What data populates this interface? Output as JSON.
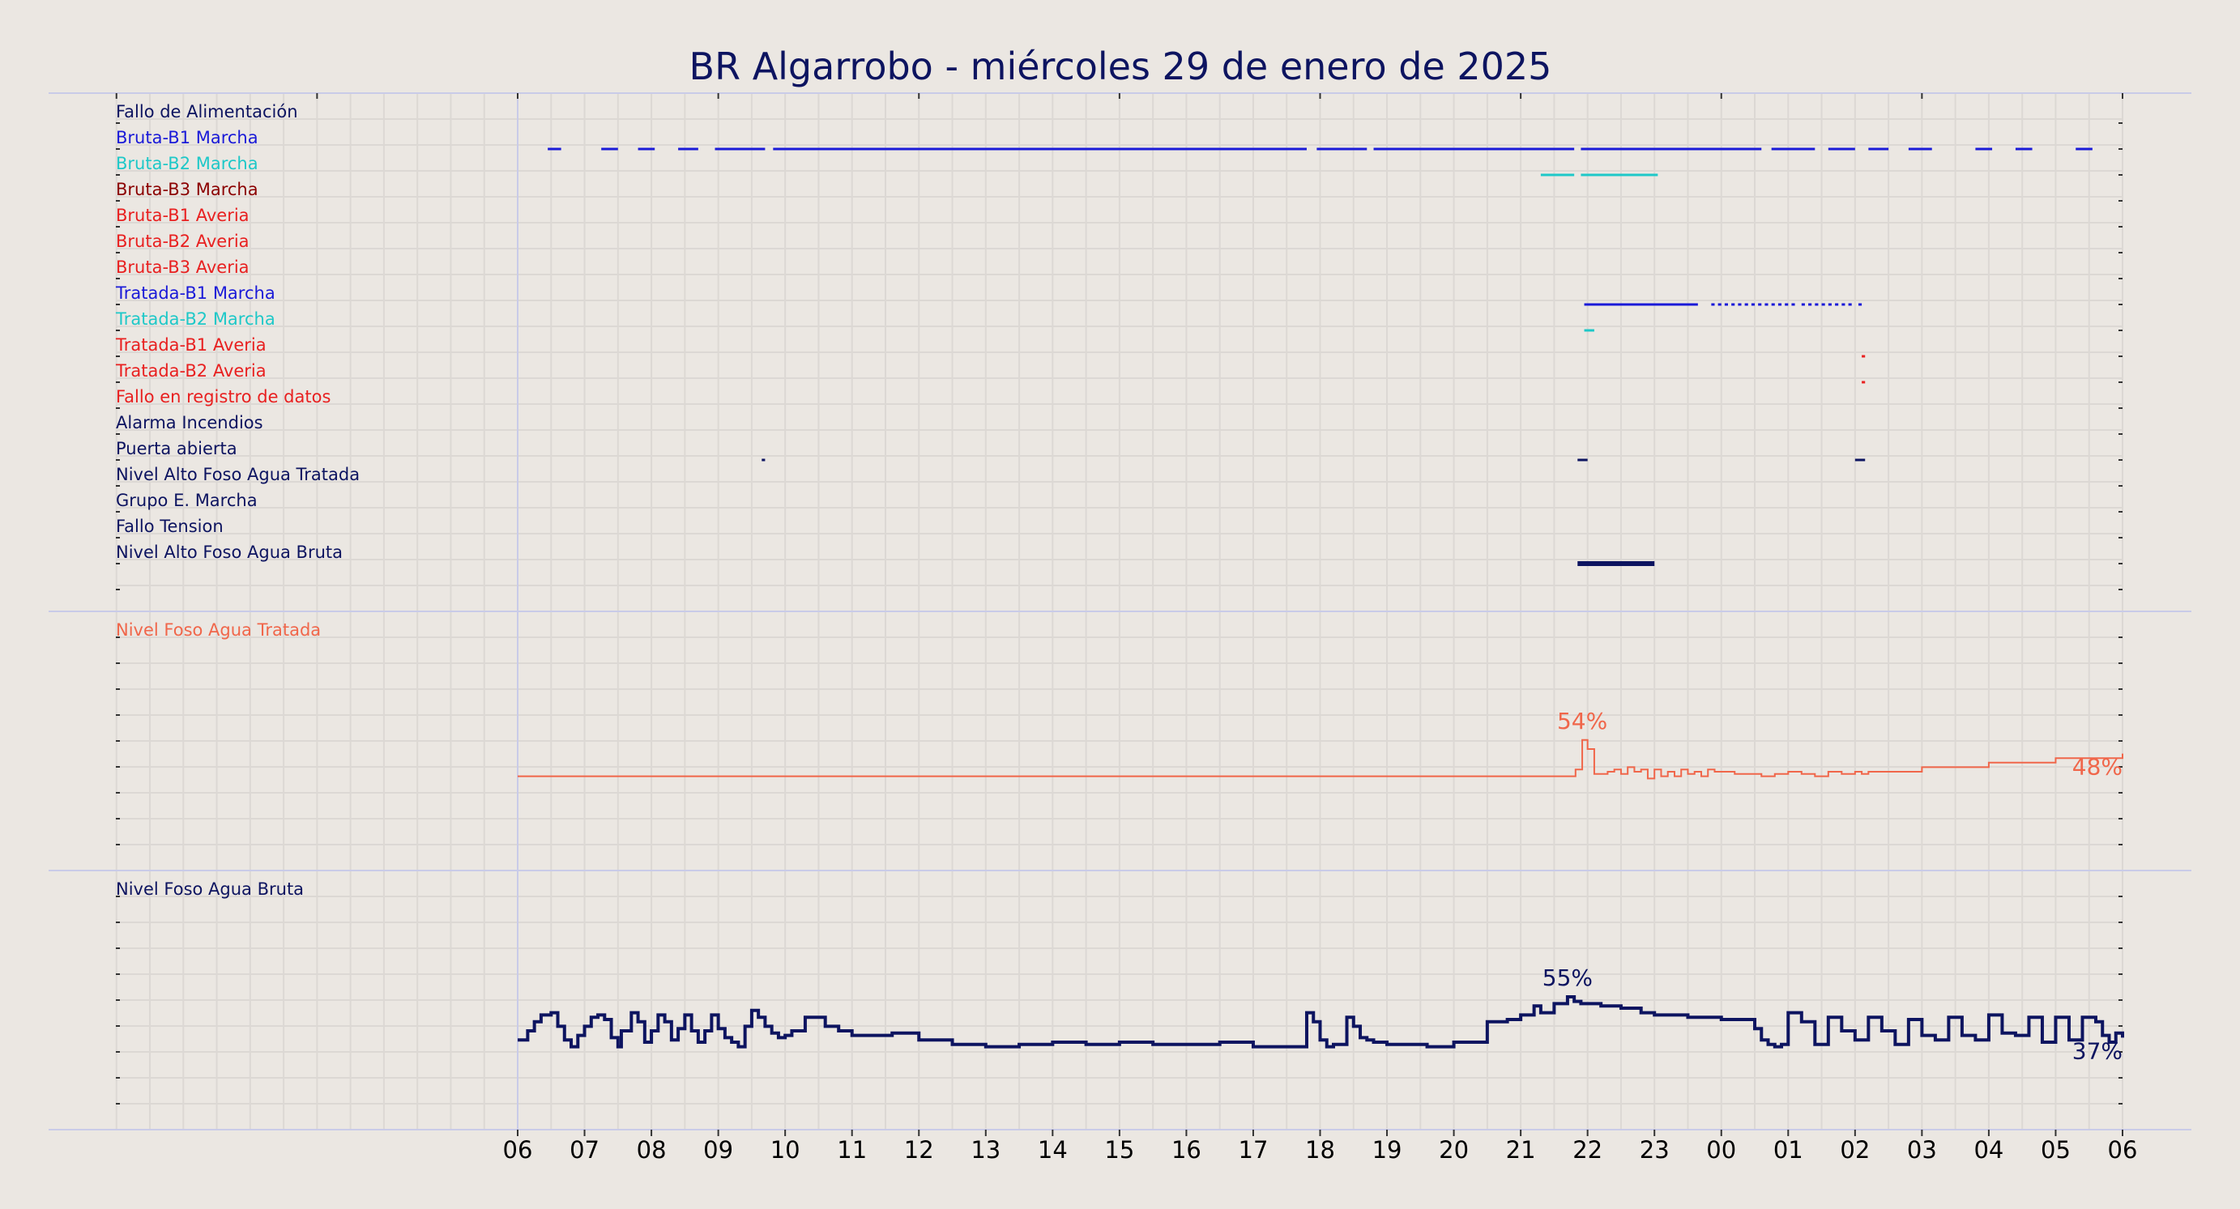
{
  "title": "BR Algarrobo   -   miércoles 29 de enero de 2025",
  "colors": {
    "background": "#ebe7e2",
    "title": "#0d1460",
    "separator": "#c9cbe8",
    "grid": "#dcd8d4",
    "navy": "#0d1460",
    "blue": "#1a1ad8",
    "cyan": "#1ec8c8",
    "darkred": "#8b0000",
    "red": "#e82020",
    "salmon": "#f0664a"
  },
  "chart_data": [
    {
      "type": "timeline",
      "title": "",
      "x_unit": "hour of day",
      "x_range": [
        "06",
        "06"
      ],
      "xticks": [
        "06",
        "07",
        "08",
        "09",
        "10",
        "11",
        "12",
        "13",
        "14",
        "15",
        "16",
        "17",
        "18",
        "19",
        "20",
        "21",
        "22",
        "23",
        "00",
        "01",
        "02",
        "03",
        "04",
        "05",
        "06"
      ],
      "rows": [
        {
          "label": "Fallo de Alimentación",
          "color": "#0d1460",
          "segments": []
        },
        {
          "label": "Bruta-B1 Marcha",
          "color": "#1a1ad8",
          "segments": [
            [
              0.45,
              0.65
            ],
            [
              1.25,
              1.5
            ],
            [
              1.8,
              2.05
            ],
            [
              2.4,
              2.7
            ],
            [
              2.95,
              3.7
            ],
            [
              3.82,
              11.8
            ],
            [
              11.95,
              12.7
            ],
            [
              12.8,
              15.8
            ],
            [
              15.9,
              18.6
            ],
            [
              18.75,
              19.4
            ],
            [
              19.6,
              20.0
            ],
            [
              20.2,
              20.5
            ],
            [
              20.8,
              21.15
            ],
            [
              21.8,
              22.05
            ],
            [
              22.4,
              22.65
            ],
            [
              23.3,
              23.55
            ]
          ]
        },
        {
          "label": "Bruta-B2 Marcha",
          "color": "#1ec8c8",
          "segments": [
            [
              15.3,
              15.8
            ],
            [
              15.9,
              17.05
            ]
          ]
        },
        {
          "label": "Bruta-B3 Marcha",
          "color": "#8b0000",
          "segments": []
        },
        {
          "label": "Bruta-B1 Averia",
          "color": "#e82020",
          "segments": []
        },
        {
          "label": "Bruta-B2 Averia",
          "color": "#e82020",
          "segments": []
        },
        {
          "label": "Bruta-B3 Averia",
          "color": "#e82020",
          "segments": []
        },
        {
          "label": "Tratada-B1 Marcha",
          "color": "#1a1ad8",
          "segments": [
            [
              15.95,
              17.65
            ],
            [
              17.85,
              17.9
            ],
            [
              17.95,
              18.0
            ],
            [
              18.05,
              18.1
            ],
            [
              18.15,
              18.2
            ],
            [
              18.25,
              18.3
            ],
            [
              18.35,
              18.4
            ],
            [
              18.45,
              18.5
            ],
            [
              18.55,
              18.6
            ],
            [
              18.65,
              18.7
            ],
            [
              18.75,
              18.8
            ],
            [
              18.85,
              18.9
            ],
            [
              18.95,
              19.0
            ],
            [
              19.05,
              19.1
            ],
            [
              19.2,
              19.25
            ],
            [
              19.3,
              19.35
            ],
            [
              19.4,
              19.45
            ],
            [
              19.5,
              19.55
            ],
            [
              19.6,
              19.65
            ],
            [
              19.7,
              19.75
            ],
            [
              19.8,
              19.85
            ],
            [
              19.9,
              19.95
            ],
            [
              20.05,
              20.1
            ]
          ]
        },
        {
          "label": "Tratada-B2 Marcha",
          "color": "#1ec8c8",
          "segments": [
            [
              15.95,
              16.1
            ]
          ]
        },
        {
          "label": "Tratada-B1 Averia",
          "color": "#e82020",
          "segments": [
            [
              20.1,
              20.15
            ]
          ]
        },
        {
          "label": "Tratada-B2 Averia",
          "color": "#e82020",
          "segments": [
            [
              20.1,
              20.15
            ]
          ]
        },
        {
          "label": "Fallo en registro de datos",
          "color": "#e82020",
          "segments": []
        },
        {
          "label": "Alarma Incendios",
          "color": "#0d1460",
          "segments": []
        },
        {
          "label": "Puerta abierta",
          "color": "#0d1460",
          "segments": [
            [
              3.65,
              3.7
            ],
            [
              15.85,
              16.0
            ],
            [
              20.0,
              20.15
            ]
          ]
        },
        {
          "label": "Nivel Alto Foso Agua Tratada",
          "color": "#0d1460",
          "segments": []
        },
        {
          "label": "Grupo E. Marcha",
          "color": "#0d1460",
          "segments": []
        },
        {
          "label": "Fallo Tension",
          "color": "#0d1460",
          "segments": []
        },
        {
          "label": "Nivel Alto Foso Agua Bruta",
          "color": "#0d1460",
          "thick": true,
          "segments": [
            [
              15.85,
              17.0
            ]
          ]
        }
      ]
    },
    {
      "type": "line",
      "title": "Nivel Foso Agua Tratada",
      "color": "#f0664a",
      "unit": "%",
      "x_unit": "hours since 06:00",
      "ylim": [
        0,
        100
      ],
      "max_label": "54%",
      "last_label": "48%",
      "x": [
        0,
        15.8,
        15.82,
        15.9,
        15.92,
        16.0,
        16.1,
        16.3,
        16.4,
        16.5,
        16.6,
        16.7,
        16.8,
        16.9,
        17.0,
        17.1,
        17.2,
        17.3,
        17.4,
        17.5,
        17.6,
        17.7,
        17.8,
        17.9,
        18.0,
        18.2,
        18.4,
        18.6,
        18.8,
        19.0,
        19.2,
        19.4,
        19.6,
        19.8,
        20.0,
        20.1,
        20.2,
        21.0,
        22.0,
        23.0,
        24.0
      ],
      "values": [
        38,
        38,
        41,
        41,
        54,
        50,
        39,
        40,
        41,
        39,
        42,
        40,
        41,
        37,
        41,
        38,
        40,
        38,
        41,
        39,
        40,
        38,
        41,
        40,
        40,
        39,
        39,
        38,
        39,
        40,
        39,
        38,
        40,
        39,
        40,
        39,
        40,
        42,
        44,
        46,
        48
      ]
    },
    {
      "type": "line",
      "title": "Nivel Foso Agua Bruta",
      "color": "#0d1460",
      "unit": "%",
      "x_unit": "hours since 06:00",
      "ylim": [
        0,
        100
      ],
      "max_label": "55%",
      "last_label": "37%",
      "x": [
        0,
        0.15,
        0.25,
        0.35,
        0.5,
        0.6,
        0.7,
        0.8,
        0.9,
        1.0,
        1.1,
        1.2,
        1.3,
        1.4,
        1.5,
        1.55,
        1.7,
        1.8,
        1.9,
        2.0,
        2.1,
        2.2,
        2.3,
        2.4,
        2.5,
        2.6,
        2.7,
        2.8,
        2.9,
        3.0,
        3.1,
        3.2,
        3.3,
        3.4,
        3.5,
        3.6,
        3.7,
        3.8,
        3.9,
        4.0,
        4.1,
        4.3,
        4.6,
        4.8,
        5.0,
        5.2,
        5.4,
        5.6,
        6.0,
        6.5,
        7.0,
        7.5,
        8.0,
        8.5,
        9.0,
        9.5,
        10.0,
        10.5,
        11.0,
        11.5,
        11.8,
        11.9,
        12.0,
        12.1,
        12.2,
        12.4,
        12.5,
        12.6,
        12.7,
        12.8,
        13.0,
        13.3,
        13.6,
        14.0,
        14.5,
        14.8,
        15.0,
        15.2,
        15.3,
        15.5,
        15.7,
        15.8,
        15.9,
        16.0,
        16.2,
        16.5,
        16.8,
        17.0,
        17.5,
        18.0,
        18.5,
        18.6,
        18.7,
        18.8,
        18.9,
        19.0,
        19.2,
        19.4,
        19.6,
        19.8,
        20.0,
        20.2,
        20.4,
        20.6,
        20.8,
        21.0,
        21.2,
        21.4,
        21.6,
        21.8,
        22.0,
        22.2,
        22.4,
        22.6,
        22.8,
        23.0,
        23.2,
        23.4,
        23.6,
        23.7,
        23.8,
        23.9,
        24.0
      ],
      "values": [
        36,
        40,
        44,
        47,
        48,
        42,
        36,
        33,
        38,
        42,
        46,
        47,
        45,
        37,
        33,
        40,
        48,
        44,
        35,
        40,
        47,
        44,
        36,
        41,
        47,
        40,
        35,
        40,
        47,
        41,
        37,
        35,
        33,
        42,
        49,
        46,
        42,
        39,
        37,
        38,
        40,
        46,
        42,
        40,
        38,
        38,
        38,
        39,
        36,
        34,
        33,
        34,
        35,
        34,
        35,
        34,
        34,
        35,
        33,
        33,
        48,
        44,
        36,
        33,
        34,
        46,
        42,
        37,
        36,
        35,
        34,
        34,
        33,
        35,
        44,
        45,
        47,
        51,
        48,
        52,
        55,
        53,
        52,
        52,
        51,
        50,
        48,
        47,
        46,
        45,
        41,
        36,
        34,
        33,
        34,
        48,
        44,
        34,
        46,
        40,
        36,
        46,
        40,
        34,
        45,
        38,
        36,
        46,
        38,
        36,
        47,
        39,
        38,
        46,
        35,
        46,
        36,
        46,
        44,
        38,
        35,
        39,
        37
      ]
    }
  ]
}
